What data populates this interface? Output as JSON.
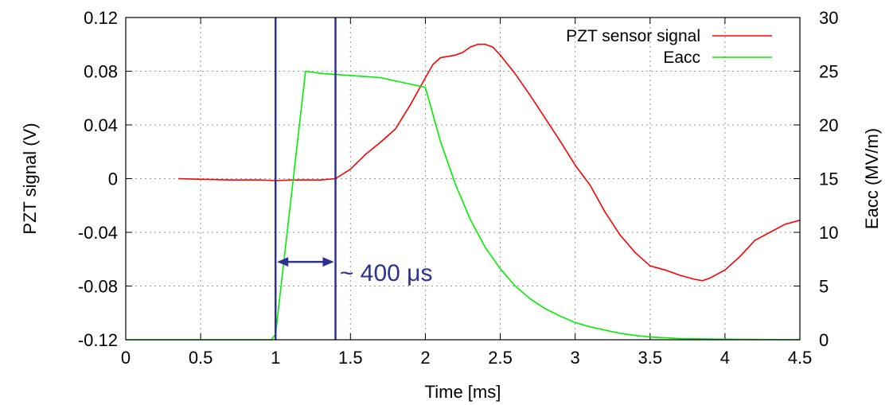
{
  "chart_data": {
    "type": "line",
    "xlabel": "Time [ms]",
    "ylabel": "PZT signal (V)",
    "y2label": "Eacc (MV/m)",
    "xlim": [
      0,
      4.5
    ],
    "ylim": [
      -0.12,
      0.12
    ],
    "y2lim": [
      0,
      30
    ],
    "grid": true,
    "legend_position": "top-right",
    "x_ticks": [
      "0",
      "0.5",
      "1",
      "1.5",
      "2",
      "2.5",
      "3",
      "3.5",
      "4",
      "4.5"
    ],
    "y_ticks": [
      "-0.12",
      "-0.08",
      "-0.04",
      "0",
      "0.04",
      "0.08",
      "0.12"
    ],
    "y2_ticks": [
      "0",
      "5",
      "10",
      "15",
      "20",
      "25",
      "30"
    ],
    "series": [
      {
        "name": "PZT sensor signal",
        "axis": "left",
        "color": "#ff0000",
        "x": [
          0.35,
          0.5,
          0.7,
          0.9,
          1.0,
          1.1,
          1.3,
          1.4,
          1.5,
          1.6,
          1.7,
          1.8,
          1.9,
          2.0,
          2.05,
          2.1,
          2.2,
          2.25,
          2.3,
          2.35,
          2.4,
          2.45,
          2.5,
          2.6,
          2.7,
          2.8,
          2.9,
          3.0,
          3.1,
          3.2,
          3.3,
          3.4,
          3.5,
          3.6,
          3.7,
          3.8,
          3.85,
          3.9,
          4.0,
          4.1,
          4.2,
          4.3,
          4.4,
          4.5
        ],
        "y": [
          0.0,
          -0.0005,
          -0.001,
          -0.001,
          -0.0015,
          -0.001,
          -0.001,
          0.0,
          0.007,
          0.018,
          0.027,
          0.037,
          0.055,
          0.075,
          0.085,
          0.09,
          0.092,
          0.094,
          0.098,
          0.1,
          0.1,
          0.098,
          0.092,
          0.078,
          0.062,
          0.045,
          0.028,
          0.01,
          -0.005,
          -0.025,
          -0.042,
          -0.055,
          -0.065,
          -0.068,
          -0.072,
          -0.075,
          -0.076,
          -0.074,
          -0.068,
          -0.058,
          -0.046,
          -0.04,
          -0.034,
          -0.031
        ]
      },
      {
        "name": "Eacc",
        "axis": "right",
        "color": "#00ee00",
        "x": [
          0.0,
          0.97,
          1.0,
          1.2,
          1.3,
          1.5,
          1.7,
          2.0,
          2.03,
          2.1,
          2.2,
          2.3,
          2.4,
          2.5,
          2.6,
          2.7,
          2.8,
          2.9,
          3.0,
          3.1,
          3.2,
          3.3,
          3.4,
          3.5,
          3.7,
          4.0,
          4.5
        ],
        "y": [
          0.0,
          0.0,
          0.5,
          25.0,
          24.8,
          24.6,
          24.4,
          23.5,
          22.0,
          18.5,
          14.5,
          11.2,
          8.6,
          6.6,
          5.0,
          3.8,
          2.9,
          2.2,
          1.6,
          1.2,
          0.9,
          0.6,
          0.4,
          0.25,
          0.1,
          0.05,
          0.0
        ]
      }
    ],
    "annotations": {
      "vertical_lines_x": [
        1.0,
        1.4
      ],
      "line_color": "#2e3192",
      "arrow_from_x": 1.0,
      "arrow_to_x": 1.4,
      "arrow_y": -0.062,
      "text": "~ 400 μs",
      "text_x": 1.45
    }
  }
}
